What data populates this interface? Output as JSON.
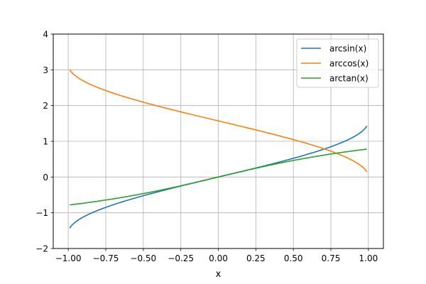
{
  "chart_data": {
    "type": "line",
    "title": "",
    "xlabel": "x",
    "ylabel": "",
    "xlim": [
      -1.1,
      1.1
    ],
    "ylim": [
      -2,
      4
    ],
    "grid": true,
    "legend_position": "upper right",
    "x_ticks": [
      "−1.00",
      "−0.75",
      "−0.50",
      "−0.25",
      "0.00",
      "0.25",
      "0.50",
      "0.75",
      "1.00"
    ],
    "x_tick_values": [
      -1.0,
      -0.75,
      -0.5,
      -0.25,
      0.0,
      0.25,
      0.5,
      0.75,
      1.0
    ],
    "y_ticks": [
      "−2",
      "−1",
      "0",
      "1",
      "2",
      "3",
      "4"
    ],
    "y_tick_values": [
      -2,
      -1,
      0,
      1,
      2,
      3,
      4
    ],
    "x": [
      -0.99,
      -0.75,
      -0.5,
      -0.25,
      0.0,
      0.25,
      0.5,
      0.75,
      0.99
    ],
    "series": [
      {
        "name": "arcsin(x)",
        "color": "#1f77b4",
        "values": [
          -1.429,
          -0.848,
          -0.524,
          -0.253,
          0.0,
          0.253,
          0.524,
          0.848,
          1.429
        ]
      },
      {
        "name": "arccos(x)",
        "color": "#ff7f0e",
        "values": [
          3.0,
          2.419,
          2.094,
          1.823,
          1.571,
          1.318,
          1.047,
          0.723,
          0.142
        ]
      },
      {
        "name": "arctan(x)",
        "color": "#2ca02c",
        "values": [
          -0.78,
          -0.644,
          -0.464,
          -0.245,
          0.0,
          0.245,
          0.464,
          0.644,
          0.78
        ]
      }
    ]
  }
}
